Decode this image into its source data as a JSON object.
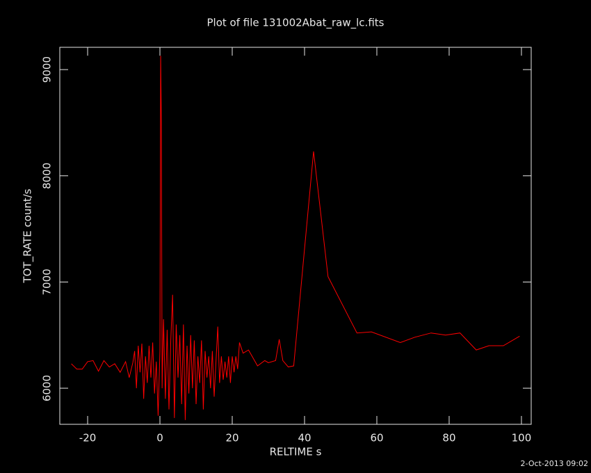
{
  "chart_data": {
    "type": "line",
    "title": "Plot of file 131002Abat_raw_lc.fits",
    "x_label": "RELTIME  s",
    "y_label": "TOT_RATE  count/s",
    "timestamp": "2-Oct-2013 09:02",
    "color": "#ff0000",
    "xlim": [
      -27.7,
      102.7
    ],
    "ylim": [
      5660,
      9210
    ],
    "xticks": [
      -20,
      0,
      20,
      40,
      60,
      80,
      100
    ],
    "yticks": [
      6000,
      7000,
      8000,
      9000
    ],
    "x": [
      -24.5,
      -23,
      -21.5,
      -20,
      -18.5,
      -17,
      -15.5,
      -14,
      -12.5,
      -11,
      -9.5,
      -8.5,
      -7.5,
      -7,
      -6.5,
      -6,
      -5.5,
      -5,
      -4.5,
      -4,
      -3.5,
      -3,
      -2.5,
      -2,
      -1.5,
      -1,
      -0.5,
      0,
      0.2,
      0.4,
      0.6,
      1,
      1.5,
      2,
      2.5,
      3,
      3.5,
      4,
      4.5,
      5,
      5.5,
      6,
      6.5,
      7,
      7.5,
      8,
      8.5,
      9,
      9.5,
      10,
      10.5,
      11,
      11.5,
      12,
      12.5,
      13,
      13.5,
      14,
      14.5,
      15,
      15.5,
      16,
      16.5,
      17,
      17.5,
      18,
      18.5,
      19,
      19.5,
      20,
      20.5,
      21,
      21.5,
      22,
      23,
      24.5,
      27,
      29,
      30,
      32,
      33,
      34,
      35.5,
      37,
      42.5,
      46.5,
      54.5,
      58.5,
      66.5,
      70.5,
      75,
      79,
      83,
      87.5,
      91,
      95,
      99.5
    ],
    "values": [
      6230,
      6180,
      6180,
      6250,
      6260,
      6160,
      6260,
      6200,
      6230,
      6150,
      6250,
      6100,
      6240,
      6350,
      6000,
      6400,
      6150,
      6420,
      5900,
      6300,
      6050,
      6400,
      6100,
      6430,
      5950,
      6250,
      5740,
      6350,
      9130,
      8500,
      6000,
      6650,
      5900,
      6550,
      5800,
      6450,
      6880,
      5720,
      6600,
      6100,
      6500,
      5850,
      6600,
      5700,
      6400,
      5950,
      6500,
      6000,
      6450,
      5850,
      6300,
      6050,
      6450,
      5800,
      6350,
      6100,
      6300,
      6000,
      6350,
      5920,
      6250,
      6580,
      6050,
      6300,
      6080,
      6250,
      6100,
      6300,
      6050,
      6300,
      6150,
      6300,
      6180,
      6430,
      6330,
      6360,
      6210,
      6260,
      6240,
      6260,
      6460,
      6260,
      6200,
      6210,
      8230,
      7050,
      6520,
      6530,
      6430,
      6480,
      6520,
      6500,
      6520,
      6360,
      6400,
      6400,
      6490
    ]
  }
}
